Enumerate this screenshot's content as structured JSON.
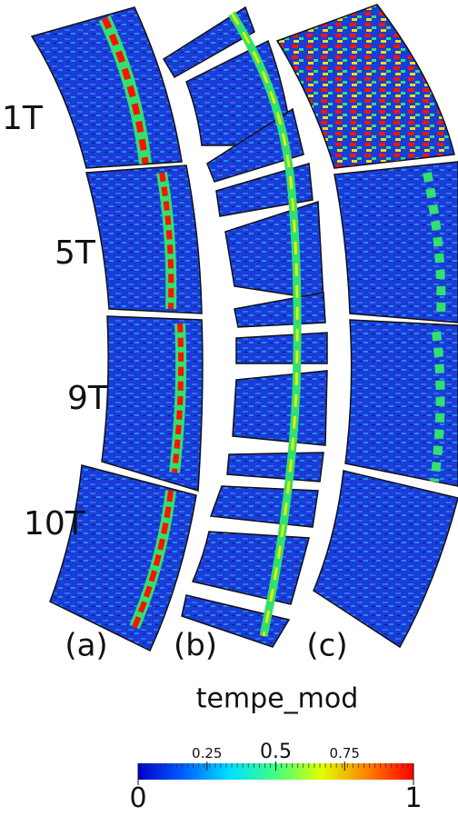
{
  "labels": {
    "rows": [
      "1T",
      "5T",
      "9T",
      "10T"
    ],
    "columns": [
      "(a)",
      "(b)",
      "(c)"
    ]
  },
  "colorbar": {
    "title": "tempe_mod",
    "range": [
      0,
      1
    ],
    "ticks": [
      0.25,
      0.5,
      0.75
    ],
    "end_ticks": [
      0,
      1
    ],
    "colors": [
      "#0000c8",
      "#0060ff",
      "#00e0ff",
      "#40ff80",
      "#e0ff00",
      "#ff8000",
      "#ff0000"
    ]
  }
}
